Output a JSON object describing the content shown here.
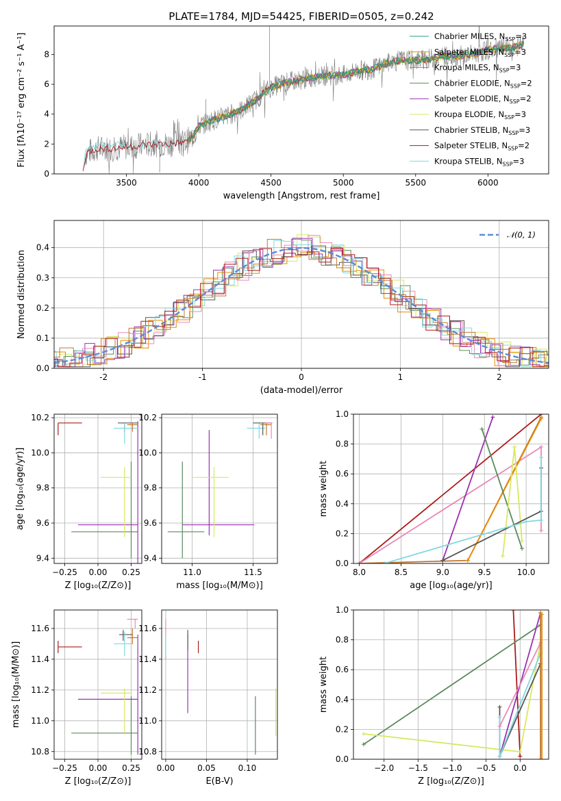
{
  "colors": {
    "chabrier_miles": "#1f9e89",
    "salpeter_miles": "#e68a00",
    "kroupa_miles": "#c07830",
    "chabrier_elodie": "#5a8a5a",
    "salpeter_elodie": "#9a30b0",
    "kroupa_elodie": "#d8e860",
    "chabrier_stelib": "#555555",
    "salpeter_stelib": "#aa1a1a",
    "kroupa_stelib": "#80d8e0",
    "pink": "#e888b8",
    "gaussian": "#5a8ad8",
    "spectrum": "#777777"
  },
  "chart_data": [
    {
      "id": "spectrum",
      "type": "line",
      "title": "PLATE=1784, MJD=54425, FIBERID=0505, z=0.242",
      "xlabel": "wavelength [Angstrom, rest frame]",
      "ylabel": "Flux [fλ10⁻¹⁷ erg cm⁻² s⁻¹ A⁻¹]",
      "xlim": [
        3000,
        6420
      ],
      "ylim": [
        0,
        9.9
      ],
      "xticks": [
        3500,
        4000,
        4500,
        5000,
        5500,
        6000
      ],
      "yticks": [
        0,
        2,
        4,
        6,
        8
      ],
      "model_envelope": {
        "x": [
          3200,
          3220,
          3300,
          3400,
          3500,
          3600,
          3700,
          3800,
          3900,
          3950,
          4000,
          4100,
          4200,
          4300,
          4400,
          4500,
          4600,
          4700,
          4800,
          4900,
          5000,
          5100,
          5200,
          5300,
          5400,
          5500,
          5600,
          5700,
          5800,
          5900,
          6000,
          6100,
          6200,
          6250
        ],
        "y": [
          0.1,
          1.4,
          1.7,
          1.7,
          1.8,
          1.9,
          2.0,
          2.0,
          2.1,
          2.4,
          3.2,
          3.6,
          3.9,
          4.3,
          5.0,
          5.8,
          6.1,
          6.3,
          6.5,
          6.6,
          6.6,
          6.9,
          7.0,
          7.4,
          7.6,
          7.6,
          7.7,
          7.9,
          7.9,
          8.0,
          8.3,
          8.4,
          8.5,
          8.7
        ]
      },
      "legend": [
        {
          "label": "Chabrier MILES, N",
          "sub": "SSP",
          "tail": "=3",
          "color": "chabrier_miles"
        },
        {
          "label": "Salpeter MILES, N",
          "sub": "SSP",
          "tail": "=3",
          "color": "salpeter_miles"
        },
        {
          "label": "Kroupa MILES, N",
          "sub": "SSP",
          "tail": "=3",
          "color": "kroupa_miles"
        },
        {
          "label": "Chabrier ELODIE, N",
          "sub": "SSP",
          "tail": "=2",
          "color": "chabrier_elodie"
        },
        {
          "label": "Salpeter ELODIE, N",
          "sub": "SSP",
          "tail": "=2",
          "color": "salpeter_elodie"
        },
        {
          "label": "Kroupa ELODIE, N",
          "sub": "SSP",
          "tail": "=3",
          "color": "kroupa_elodie"
        },
        {
          "label": "Chabrier STELIB, N",
          "sub": "SSP",
          "tail": "=3",
          "color": "chabrier_stelib"
        },
        {
          "label": "Salpeter STELIB, N",
          "sub": "SSP",
          "tail": "=2",
          "color": "salpeter_stelib"
        },
        {
          "label": "Kroupa STELIB, N",
          "sub": "SSP",
          "tail": "=3",
          "color": "kroupa_stelib"
        }
      ]
    },
    {
      "id": "residuals",
      "type": "histogram",
      "xlabel": "(data-model)/error",
      "ylabel": "Normed distribution",
      "xlim": [
        -2.5,
        2.5
      ],
      "ylim": [
        0,
        0.49
      ],
      "xticks": [
        -2,
        -1,
        0,
        1,
        2
      ],
      "yticks": [
        0.0,
        0.1,
        0.2,
        0.3,
        0.4
      ],
      "legend": {
        "label": "𝒩(0, 1)"
      },
      "grid": true
    },
    {
      "id": "age_vs_Z",
      "type": "errorbar",
      "xlabel": "Z [log₁₀(Z/Z⊙)]",
      "ylabel": "age  [log₁₀(age/yr)]",
      "xlim": [
        -0.33,
        0.33
      ],
      "ylim": [
        9.37,
        10.22
      ],
      "xticks": [
        -0.25,
        0.0,
        0.25
      ],
      "xticklabels": [
        "−0.25",
        "0.00",
        "0.25"
      ],
      "yticks": [
        9.4,
        9.6,
        9.8,
        10.0,
        10.2
      ],
      "grid": true,
      "points": [
        {
          "x": 0.06,
          "xlo": -0.2,
          "xhi": 0.3,
          "y": 9.55,
          "ylo": 9.55,
          "yhi": 9.55,
          "color": "chabrier_elodie"
        },
        {
          "x": 0.25,
          "xlo": 0.25,
          "xhi": 0.25,
          "y": 9.55,
          "ylo": 9.4,
          "yhi": 9.95,
          "color": "chabrier_elodie"
        },
        {
          "x": 0.09,
          "xlo": -0.15,
          "xhi": 0.3,
          "y": 9.59,
          "ylo": 9.59,
          "yhi": 9.59,
          "color": "salpeter_elodie"
        },
        {
          "x": 0.3,
          "xlo": 0.3,
          "xhi": 0.3,
          "y": 9.59,
          "ylo": 9.36,
          "yhi": 10.18,
          "color": "salpeter_elodie"
        },
        {
          "x": 0.2,
          "xlo": 0.02,
          "xhi": 0.25,
          "y": 9.86,
          "ylo": 9.52,
          "yhi": 9.92,
          "color": "kroupa_elodie"
        },
        {
          "x": -0.3,
          "xlo": -0.3,
          "xhi": -0.12,
          "y": 10.17,
          "ylo": 10.1,
          "yhi": 10.17,
          "color": "salpeter_stelib"
        },
        {
          "x": 0.2,
          "xlo": 0.15,
          "xhi": 0.3,
          "y": 10.17,
          "ylo": 10.12,
          "yhi": 10.17,
          "color": "chabrier_stelib"
        },
        {
          "x": 0.2,
          "xlo": 0.12,
          "xhi": 0.3,
          "y": 10.14,
          "ylo": 10.05,
          "yhi": 10.17,
          "color": "kroupa_stelib"
        },
        {
          "x": 0.26,
          "xlo": 0.22,
          "xhi": 0.3,
          "y": 10.16,
          "ylo": 10.12,
          "yhi": 10.17,
          "color": "kroupa_miles"
        }
      ]
    },
    {
      "id": "age_vs_mass",
      "type": "errorbar",
      "xlabel": "mass [log₁₀(M/M⊙)]",
      "ylabel": "",
      "xlim": [
        10.75,
        11.7
      ],
      "ylim": [
        9.37,
        10.22
      ],
      "xticks": [
        11.0,
        11.5
      ],
      "xticklabels": [
        "11.0",
        "11.5"
      ],
      "yticks": [
        9.4,
        9.6,
        9.8,
        10.0,
        10.2
      ],
      "grid": true,
      "points": [
        {
          "x": 10.92,
          "xlo": 10.8,
          "xhi": 11.1,
          "y": 9.55,
          "ylo": 9.4,
          "yhi": 9.95,
          "color": "chabrier_elodie"
        },
        {
          "x": 11.14,
          "xlo": 10.92,
          "xhi": 11.51,
          "y": 9.59,
          "ylo": 9.53,
          "yhi": 10.13,
          "color": "salpeter_elodie"
        },
        {
          "x": 11.18,
          "xlo": 11.0,
          "xhi": 11.3,
          "y": 9.86,
          "ylo": 9.52,
          "yhi": 9.92,
          "color": "kroupa_elodie"
        },
        {
          "x": 11.55,
          "xlo": 11.45,
          "xhi": 11.6,
          "y": 10.14,
          "ylo": 10.08,
          "yhi": 10.17,
          "color": "kroupa_stelib"
        },
        {
          "x": 11.58,
          "xlo": 11.5,
          "xhi": 11.65,
          "y": 10.17,
          "ylo": 10.1,
          "yhi": 10.17,
          "color": "chabrier_stelib"
        },
        {
          "x": 11.61,
          "xlo": 11.56,
          "xhi": 11.65,
          "y": 10.16,
          "ylo": 10.1,
          "yhi": 10.17,
          "color": "kroupa_miles"
        },
        {
          "x": 11.65,
          "xlo": 11.6,
          "xhi": 11.66,
          "y": 10.17,
          "ylo": 10.08,
          "yhi": 10.17,
          "color": "pink"
        }
      ]
    },
    {
      "id": "mass_weight_vs_age",
      "type": "line",
      "xlabel": "age  [log₁₀(age/yr)]",
      "ylabel": "mass weight",
      "xlim": [
        7.93,
        10.27
      ],
      "ylim": [
        0,
        1.0
      ],
      "xticks": [
        8.0,
        8.5,
        9.0,
        9.5,
        10.0
      ],
      "xticklabels": [
        "8.0",
        "8.5",
        "9.0",
        "9.5",
        "10.0"
      ],
      "yticks": [
        0.0,
        0.2,
        0.4,
        0.6,
        0.8,
        1.0
      ],
      "grid": true,
      "series": [
        {
          "color": "salpeter_stelib",
          "x": [
            8.0,
            10.18
          ],
          "y": [
            0.0,
            1.0
          ]
        },
        {
          "color": "pink",
          "x": [
            8.0,
            10.18,
            10.18
          ],
          "y": [
            0.0,
            0.78,
            0.22
          ]
        },
        {
          "color": "kroupa_miles",
          "x": [
            8.0,
            9.3,
            10.18
          ],
          "y": [
            0.0,
            0.02,
            0.98
          ]
        },
        {
          "color": "salpeter_miles",
          "x": [
            9.3,
            10.18
          ],
          "y": [
            0.02,
            0.97
          ]
        },
        {
          "color": "salpeter_elodie",
          "x": [
            9.0,
            9.6
          ],
          "y": [
            0.02,
            0.98
          ]
        },
        {
          "color": "chabrier_elodie",
          "x": [
            9.47,
            9.95
          ],
          "y": [
            0.9,
            0.1
          ]
        },
        {
          "color": "kroupa_elodie",
          "x": [
            9.72,
            9.86,
            9.95
          ],
          "y": [
            0.05,
            0.78,
            0.15
          ]
        },
        {
          "color": "chabrier_stelib",
          "x": [
            9.0,
            10.18,
            10.18
          ],
          "y": [
            0.02,
            0.35,
            0.64
          ]
        },
        {
          "color": "kroupa_stelib",
          "x": [
            8.3,
            10.0,
            10.18,
            10.18
          ],
          "y": [
            0.0,
            0.28,
            0.29,
            0.71
          ]
        }
      ]
    },
    {
      "id": "mass_vs_Z",
      "type": "errorbar",
      "xlabel": "Z [log₁₀(Z/Z⊙)]",
      "ylabel": "mass [log₁₀(M/M⊙)]",
      "xlim": [
        -0.33,
        0.33
      ],
      "ylim": [
        10.75,
        11.72
      ],
      "xticks": [
        -0.25,
        0.0,
        0.25
      ],
      "xticklabels": [
        "−0.25",
        "0.00",
        "0.25"
      ],
      "yticks": [
        10.8,
        11.0,
        11.2,
        11.4,
        11.6
      ],
      "grid": true,
      "points": [
        {
          "x": 0.06,
          "xlo": -0.2,
          "xhi": 0.3,
          "y": 10.92,
          "ylo": 10.92,
          "yhi": 10.92,
          "color": "chabrier_elodie"
        },
        {
          "x": 0.25,
          "xlo": 0.25,
          "xhi": 0.25,
          "y": 10.92,
          "ylo": 10.78,
          "yhi": 11.16,
          "color": "chabrier_elodie"
        },
        {
          "x": 0.09,
          "xlo": -0.15,
          "xhi": 0.3,
          "y": 11.14,
          "ylo": 11.14,
          "yhi": 11.14,
          "color": "salpeter_elodie"
        },
        {
          "x": 0.3,
          "xlo": 0.3,
          "xhi": 0.3,
          "y": 11.14,
          "ylo": 10.78,
          "yhi": 11.56,
          "color": "salpeter_elodie"
        },
        {
          "x": 0.2,
          "xlo": 0.02,
          "xhi": 0.25,
          "y": 11.18,
          "ylo": 10.92,
          "yhi": 11.21,
          "color": "kroupa_elodie"
        },
        {
          "x": -0.3,
          "xlo": -0.3,
          "xhi": -0.12,
          "y": 11.48,
          "ylo": 11.44,
          "yhi": 11.52,
          "color": "salpeter_stelib"
        },
        {
          "x": 0.19,
          "xlo": 0.16,
          "xhi": 0.26,
          "y": 11.56,
          "ylo": 11.52,
          "yhi": 11.59,
          "color": "chabrier_stelib"
        },
        {
          "x": 0.2,
          "xlo": 0.12,
          "xhi": 0.26,
          "y": 11.5,
          "ylo": 11.42,
          "yhi": 11.58,
          "color": "kroupa_stelib"
        },
        {
          "x": 0.26,
          "xlo": 0.22,
          "xhi": 0.3,
          "y": 11.54,
          "ylo": 11.5,
          "yhi": 11.6,
          "color": "kroupa_miles"
        },
        {
          "x": 0.28,
          "xlo": 0.22,
          "xhi": 0.3,
          "y": 11.66,
          "ylo": 11.6,
          "yhi": 11.66,
          "color": "pink"
        }
      ]
    },
    {
      "id": "mass_vs_ebv",
      "type": "errorbar",
      "xlabel": "E(B-V)",
      "ylabel": "",
      "xlim": [
        -0.005,
        0.137
      ],
      "ylim": [
        10.75,
        11.72
      ],
      "xticks": [
        0.0,
        0.05,
        0.1
      ],
      "xticklabels": [
        "0.00",
        "0.05",
        "0.10"
      ],
      "yticks": [
        10.8,
        11.0,
        11.2,
        11.4,
        11.6
      ],
      "grid": true,
      "points": [
        {
          "x": 0.0,
          "xlo": 0.0,
          "xhi": 0.0,
          "y": 11.5,
          "ylo": 11.4,
          "yhi": 11.66,
          "color": "pink"
        },
        {
          "x": 0.0,
          "xlo": 0.0,
          "xhi": 0.0,
          "y": 11.48,
          "ylo": 11.42,
          "yhi": 11.56,
          "color": "kroupa_stelib"
        },
        {
          "x": 0.027,
          "xlo": 0.027,
          "xhi": 0.027,
          "y": 11.3,
          "ylo": 11.05,
          "yhi": 11.56,
          "color": "salpeter_elodie"
        },
        {
          "x": 0.027,
          "xlo": 0.027,
          "xhi": 0.027,
          "y": 11.52,
          "ylo": 11.46,
          "yhi": 11.59,
          "color": "chabrier_stelib"
        },
        {
          "x": 0.04,
          "xlo": 0.04,
          "xhi": 0.04,
          "y": 11.48,
          "ylo": 11.44,
          "yhi": 11.52,
          "color": "salpeter_stelib"
        },
        {
          "x": 0.11,
          "xlo": 0.11,
          "xhi": 0.11,
          "y": 10.95,
          "ylo": 10.78,
          "yhi": 11.16,
          "color": "chabrier_elodie"
        },
        {
          "x": 0.135,
          "xlo": 0.135,
          "xhi": 0.135,
          "y": 11.05,
          "ylo": 10.9,
          "yhi": 11.21,
          "color": "kroupa_elodie"
        }
      ]
    },
    {
      "id": "mass_weight_vs_Z",
      "type": "line",
      "xlabel": "Z [log₁₀(Z/Z⊙)]",
      "ylabel": "mass weight",
      "xlim": [
        -2.45,
        0.42
      ],
      "ylim": [
        0,
        1.0
      ],
      "xticks": [
        -2.0,
        -1.5,
        -1.0,
        -0.5,
        0.0
      ],
      "xticklabels": [
        "−2.0",
        "−1.5",
        "−1.0",
        "−0.5",
        "0.0"
      ],
      "yticks": [
        0.0,
        0.2,
        0.4,
        0.6,
        0.8,
        1.0
      ],
      "grid": true,
      "series": [
        {
          "color": "salpeter_stelib",
          "x": [
            -0.1,
            0.0
          ],
          "y": [
            1.0,
            0.02
          ]
        },
        {
          "color": "chabrier_elodie",
          "x": [
            -2.3,
            0.3
          ],
          "y": [
            0.1,
            0.9
          ]
        },
        {
          "color": "kroupa_elodie",
          "x": [
            -2.3,
            0.0,
            0.3
          ],
          "y": [
            0.17,
            0.05,
            0.78
          ]
        },
        {
          "color": "salpeter_elodie",
          "x": [
            -0.3,
            0.3
          ],
          "y": [
            0.02,
            0.98
          ]
        },
        {
          "color": "chabrier_stelib",
          "x": [
            -0.3,
            -0.3,
            0.3
          ],
          "y": [
            0.35,
            0.02,
            0.64
          ]
        },
        {
          "color": "kroupa_stelib",
          "x": [
            -0.3,
            -0.3,
            0.3
          ],
          "y": [
            0.28,
            0.02,
            0.71
          ]
        },
        {
          "color": "pink",
          "x": [
            -0.3,
            0.3
          ],
          "y": [
            0.22,
            0.78
          ]
        },
        {
          "color": "kroupa_miles",
          "x": [
            0.3,
            0.3
          ],
          "y": [
            0.0,
            0.98
          ]
        },
        {
          "color": "salpeter_miles",
          "x": [
            0.32,
            0.32
          ],
          "y": [
            0.0,
            0.97
          ]
        }
      ]
    }
  ]
}
